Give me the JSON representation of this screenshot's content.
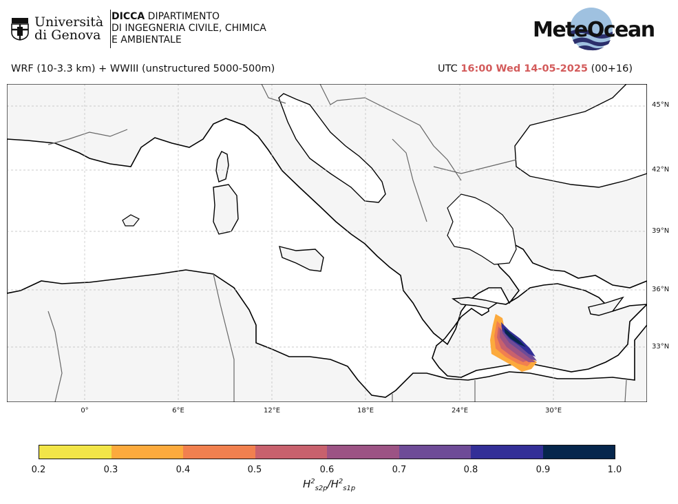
{
  "header": {
    "unige_line1": "Università",
    "unige_line2": "di Genova",
    "dicca_bold": "DICCA",
    "dicca_line1": " DIPARTIMENTO",
    "dicca_line2": "DI INGEGNERIA CIVILE, CHIMICA",
    "dicca_line3": "E AMBIENTALE",
    "meteocean": "MeteOcean"
  },
  "subtitle": {
    "model": "WRF (10-3.3 km) + WWIII (unstructured 5000-500m)",
    "utc": "UTC ",
    "datetime": "16:00 Wed 14-05-2025",
    "lead": " (00+16)"
  },
  "map": {
    "lat_labels": [
      "45°N",
      "42°N",
      "39°N",
      "36°N",
      "33°N"
    ],
    "lon_labels": [
      "0°",
      "6°E",
      "12°E",
      "18°E",
      "24°E",
      "30°E"
    ],
    "land_color": "#f5f5f5",
    "sea_color": "#ffffff"
  },
  "colorbar": {
    "ticks": [
      "0.2",
      "0.3",
      "0.4",
      "0.5",
      "0.6",
      "0.7",
      "0.8",
      "0.9",
      "1.0"
    ],
    "colors": [
      "#f2e548",
      "#fcaa3d",
      "#f1804f",
      "#c8616d",
      "#9c5384",
      "#6e4b97",
      "#332f97",
      "#06264c"
    ],
    "label_base": "H",
    "label_sub1": "s2p",
    "label_sub2": "s1p"
  }
}
